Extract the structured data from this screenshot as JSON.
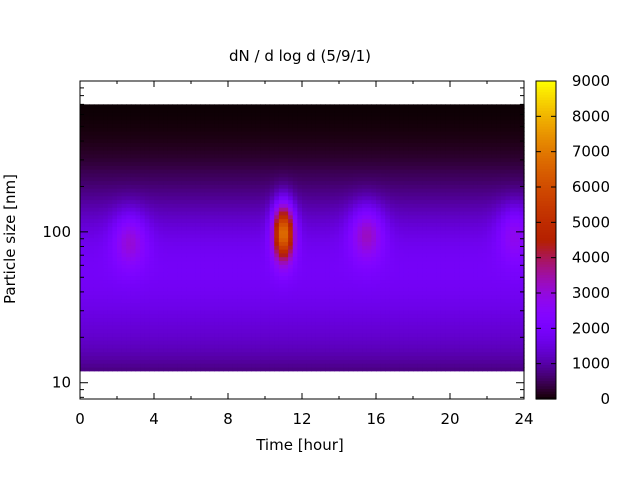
{
  "chart_data": {
    "type": "heatmap",
    "title": "dN / d log d (5/9/1)",
    "xlabel": "Time [hour]",
    "ylabel": "Particle size [nm]",
    "xlim": [
      0,
      24
    ],
    "xticks": [
      0,
      4,
      8,
      12,
      16,
      20,
      24
    ],
    "yscale": "log",
    "ylim": [
      7.8,
      1000
    ],
    "yticks": [
      10,
      100
    ],
    "colorbar": {
      "range": [
        0,
        9000
      ],
      "ticks": [
        0,
        1000,
        2000,
        3000,
        4000,
        5000,
        6000,
        7000,
        8000,
        9000
      ],
      "colormap": "gnuplot",
      "colors": {
        "low": "#000000",
        "mid_low": "#8000ff",
        "mid": "#c02060",
        "high": "#ff8000",
        "top": "#ffff00"
      }
    },
    "data_extent": {
      "y_min_nm": 12,
      "y_max_nm": 700
    },
    "features": [
      {
        "label": "peak",
        "x_hour": 11.0,
        "y_nm": 100,
        "value": 7200
      },
      {
        "label": "secondary",
        "x_hour": 15.5,
        "y_nm": 100,
        "value": 3500
      },
      {
        "label": "early",
        "x_hour": 2.7,
        "y_nm": 90,
        "value": 3200
      },
      {
        "label": "late",
        "x_hour": 23.5,
        "y_nm": 100,
        "value": 3000
      }
    ],
    "legend": "none",
    "grid": false
  }
}
